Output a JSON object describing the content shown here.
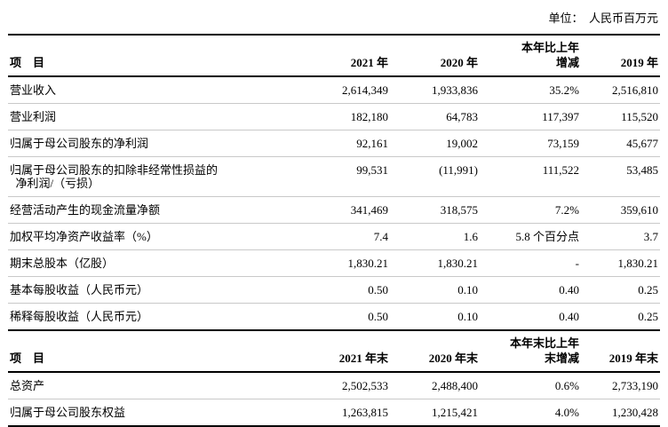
{
  "unit_label": "单位：  人民币百万元",
  "table1": {
    "headers": {
      "item": "项    目",
      "col1": "2021 年",
      "col2": "2020 年",
      "col3_line1": "本年比上年",
      "col3_line2": "增减",
      "col4": "2019 年"
    },
    "rows": [
      {
        "label": "营业收入",
        "v1": "2,614,349",
        "v2": "1,933,836",
        "v3": "35.2%",
        "v4": "2,516,810"
      },
      {
        "label": "营业利润",
        "v1": "182,180",
        "v2": "64,783",
        "v3": "117,397",
        "v4": "115,520"
      },
      {
        "label": "归属于母公司股东的净利润",
        "v1": "92,161",
        "v2": "19,002",
        "v3": "73,159",
        "v4": "45,677"
      },
      {
        "label": "归属于母公司股东的扣除非经常性损益的\n  净利润/（亏损）",
        "v1": "99,531",
        "v2": "(11,991)",
        "v3": "111,522",
        "v4": "53,485"
      },
      {
        "label": "经营活动产生的现金流量净额",
        "v1": "341,469",
        "v2": "318,575",
        "v3": "7.2%",
        "v4": "359,610"
      },
      {
        "label": "加权平均净资产收益率（%）",
        "v1": "7.4",
        "v2": "1.6",
        "v3": "5.8 个百分点",
        "v4": "3.7"
      },
      {
        "label": "期末总股本（亿股）",
        "v1": "1,830.21",
        "v2": "1,830.21",
        "v3": "-",
        "v4": "1,830.21"
      },
      {
        "label": "基本每股收益（人民币元）",
        "v1": "0.50",
        "v2": "0.10",
        "v3": "0.40",
        "v4": "0.25"
      },
      {
        "label": "稀释每股收益（人民币元）",
        "v1": "0.50",
        "v2": "0.10",
        "v3": "0.40",
        "v4": "0.25"
      }
    ]
  },
  "table2": {
    "headers": {
      "item": "项    目",
      "col1": "2021 年末",
      "col2": "2020 年末",
      "col3_line1": "本年末比上年",
      "col3_line2": "末增减",
      "col4": "2019 年末"
    },
    "rows": [
      {
        "label": "总资产",
        "v1": "2,502,533",
        "v2": "2,488,400",
        "v3": "0.6%",
        "v4": "2,733,190"
      },
      {
        "label": "归属于母公司股东权益",
        "v1": "1,263,815",
        "v2": "1,215,421",
        "v3": "4.0%",
        "v4": "1,230,428"
      }
    ]
  }
}
